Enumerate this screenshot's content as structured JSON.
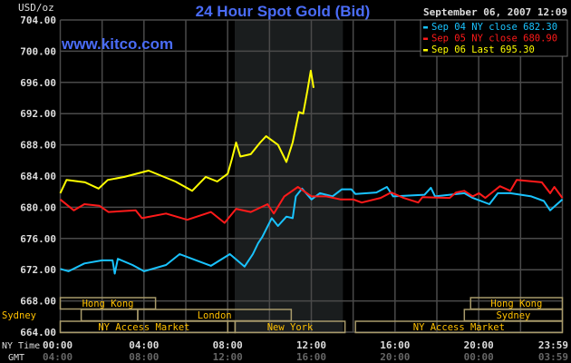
{
  "chart_data": {
    "type": "line",
    "title": "24 Hour Spot Gold (Bid)",
    "watermark": "www.kitco.com",
    "timestamp": "September 06, 2007 12:09",
    "ylabel": "USD/oz",
    "ylim": [
      664,
      704
    ],
    "yticks": [
      "704.00",
      "700.00",
      "696.00",
      "692.00",
      "688.00",
      "684.00",
      "680.00",
      "676.00",
      "672.00",
      "668.00",
      "664.00"
    ],
    "x_row_labels": {
      "ny": "NY Time",
      "gmt": "GMT"
    },
    "xticks_ny": [
      "00:00",
      "04:00",
      "08:00",
      "12:00",
      "16:00",
      "20:00",
      "23:59"
    ],
    "xticks_gmt": [
      "04:00",
      "08:00",
      "12:00",
      "16:00",
      "20:00",
      "00:00",
      "03:59"
    ],
    "grid": true,
    "legend_placement": "top-right",
    "highlight_period": [
      "08:20",
      "13:30"
    ],
    "colors": {
      "background": "#000000",
      "grid": "#4a4a4a",
      "title": "#4a6cf7",
      "session": "#ffc000",
      "session_border": "#a89a6a",
      "highlight": "#1a1d1e"
    },
    "series": [
      {
        "name": "Sep 04 NY close 682.30",
        "color": "#19c3ff",
        "points": [
          [
            "00:00",
            672.1
          ],
          [
            "00:24",
            671.8
          ],
          [
            "01:09",
            672.8
          ],
          [
            "02:00",
            673.2
          ],
          [
            "02:30",
            673.2
          ],
          [
            "02:36",
            671.5
          ],
          [
            "02:45",
            673.4
          ],
          [
            "03:27",
            672.6
          ],
          [
            "04:00",
            671.8
          ],
          [
            "05:03",
            672.6
          ],
          [
            "05:42",
            674.0
          ],
          [
            "06:30",
            673.2
          ],
          [
            "07:12",
            672.5
          ],
          [
            "08:06",
            674.0
          ],
          [
            "08:48",
            672.4
          ],
          [
            "09:12",
            674.0
          ],
          [
            "09:27",
            675.4
          ],
          [
            "09:39",
            676.2
          ],
          [
            "10:06",
            678.6
          ],
          [
            "10:24",
            677.6
          ],
          [
            "10:48",
            678.8
          ],
          [
            "11:06",
            678.6
          ],
          [
            "11:15",
            681.4
          ],
          [
            "11:33",
            682.4
          ],
          [
            "12:00",
            681.0
          ],
          [
            "12:24",
            681.8
          ],
          [
            "13:00",
            681.4
          ],
          [
            "13:27",
            682.3
          ],
          [
            "13:54",
            682.3
          ],
          [
            "14:06",
            681.7
          ],
          [
            "15:06",
            681.9
          ],
          [
            "15:36",
            682.6
          ],
          [
            "15:54",
            681.4
          ],
          [
            "17:24",
            681.6
          ],
          [
            "17:42",
            682.5
          ],
          [
            "17:54",
            681.4
          ],
          [
            "19:18",
            681.8
          ],
          [
            "19:42",
            681.2
          ],
          [
            "20:30",
            680.4
          ],
          [
            "20:54",
            681.8
          ],
          [
            "21:30",
            681.8
          ],
          [
            "22:30",
            681.4
          ],
          [
            "23:06",
            680.8
          ],
          [
            "23:24",
            679.6
          ],
          [
            "23:59",
            681.0
          ]
        ]
      },
      {
        "name": "Sep 05 NY close 680.90",
        "color": "#ff1a1a",
        "points": [
          [
            "00:00",
            681.0
          ],
          [
            "00:39",
            679.6
          ],
          [
            "01:09",
            680.4
          ],
          [
            "01:52",
            680.2
          ],
          [
            "02:18",
            679.4
          ],
          [
            "03:36",
            679.6
          ],
          [
            "03:54",
            678.6
          ],
          [
            "05:03",
            679.2
          ],
          [
            "06:04",
            678.4
          ],
          [
            "07:12",
            679.4
          ],
          [
            "07:51",
            678.0
          ],
          [
            "08:24",
            679.8
          ],
          [
            "09:06",
            679.4
          ],
          [
            "09:54",
            680.4
          ],
          [
            "10:12",
            679.2
          ],
          [
            "10:42",
            681.4
          ],
          [
            "11:21",
            682.6
          ],
          [
            "12:00",
            681.4
          ],
          [
            "12:42",
            681.4
          ],
          [
            "13:24",
            681.0
          ],
          [
            "14:00",
            681.0
          ],
          [
            "14:24",
            680.6
          ],
          [
            "15:18",
            681.2
          ],
          [
            "15:48",
            681.9
          ],
          [
            "16:24",
            681.2
          ],
          [
            "17:06",
            680.6
          ],
          [
            "17:18",
            681.3
          ],
          [
            "18:36",
            681.2
          ],
          [
            "18:54",
            681.9
          ],
          [
            "19:18",
            682.1
          ],
          [
            "19:42",
            681.4
          ],
          [
            "20:00",
            681.8
          ],
          [
            "20:18",
            681.2
          ],
          [
            "21:00",
            682.7
          ],
          [
            "21:30",
            682.1
          ],
          [
            "21:48",
            683.5
          ],
          [
            "23:00",
            683.2
          ],
          [
            "23:24",
            681.8
          ],
          [
            "23:36",
            682.6
          ],
          [
            "23:59",
            681.2
          ]
        ]
      },
      {
        "name": "Sep 06 Last 695.30",
        "color": "#ffff00",
        "points": [
          [
            "00:00",
            681.8
          ],
          [
            "00:18",
            683.5
          ],
          [
            "01:11",
            683.2
          ],
          [
            "01:50",
            682.4
          ],
          [
            "02:16",
            683.5
          ],
          [
            "03:04",
            683.9
          ],
          [
            "04:13",
            684.7
          ],
          [
            "05:30",
            683.3
          ],
          [
            "06:18",
            682.1
          ],
          [
            "06:57",
            683.9
          ],
          [
            "07:30",
            683.3
          ],
          [
            "08:00",
            684.3
          ],
          [
            "08:12",
            686.2
          ],
          [
            "08:24",
            688.3
          ],
          [
            "08:36",
            686.5
          ],
          [
            "09:06",
            686.8
          ],
          [
            "09:33",
            688.3
          ],
          [
            "09:50",
            689.1
          ],
          [
            "10:24",
            688.0
          ],
          [
            "10:48",
            685.8
          ],
          [
            "11:06",
            688.3
          ],
          [
            "11:24",
            692.2
          ],
          [
            "11:36",
            692.0
          ],
          [
            "11:48",
            694.9
          ],
          [
            "11:58",
            697.5
          ],
          [
            "12:06",
            695.3
          ]
        ]
      }
    ],
    "sessions": [
      {
        "label": "Hong Kong",
        "row": 0,
        "start": "00:00",
        "end": "04:33"
      },
      {
        "label": "Hong Kong",
        "row": 0,
        "start": "19:36",
        "end": "23:59"
      },
      {
        "label": "Sydney",
        "row": 1,
        "start": "01:00",
        "end": "03:42",
        "label_outside": true
      },
      {
        "label": "Sydney",
        "row": 1,
        "start": "19:18",
        "end": "23:59"
      },
      {
        "label": "London",
        "row": 1,
        "start": "03:42",
        "end": "11:02"
      },
      {
        "label": "NY Access Market",
        "row": 2,
        "start": "00:00",
        "end": "08:00"
      },
      {
        "label": "",
        "row": 2,
        "start": "08:00",
        "end": "08:21"
      },
      {
        "label": "New York",
        "row": 2,
        "start": "08:21",
        "end": "13:36"
      },
      {
        "label": "NY Access Market",
        "row": 2,
        "start": "14:06",
        "end": "23:59"
      }
    ]
  }
}
